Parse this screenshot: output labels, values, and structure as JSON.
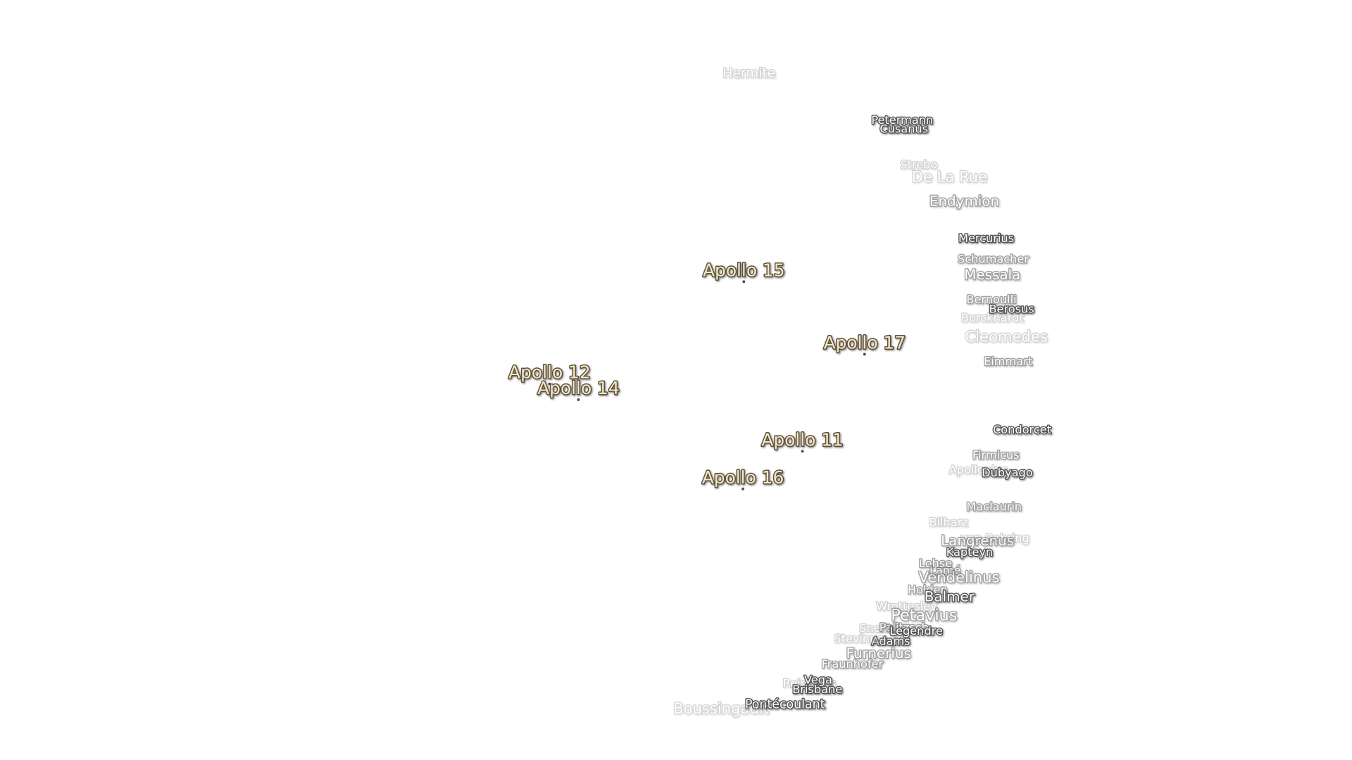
{
  "landing_sites": [
    "Apollo 15",
    "Apollo 17",
    "Apollo 12",
    "Apollo 14",
    "Apollo 11",
    "Apollo 16"
  ],
  "craters": [
    "Hermite",
    "Petermann",
    "Cusanus",
    "Strebo",
    "De La Rue",
    "Endymion",
    "Mercurius",
    "Schumacher",
    "Messala",
    "Bernoulli",
    "Berosus",
    "Burckhardt",
    "Cleomedes",
    "Eimmart",
    "Condorcet",
    "Firmicus",
    "Apollonius",
    "Dubyago",
    "Maclaurin",
    "Bilharz",
    "von Behring",
    "Langrenus",
    "Kapteyn",
    "Lohse",
    "Lamé",
    "Vendelinus",
    "Holden",
    "Balmer",
    "Wrottesley",
    "Petavius",
    "Snellius",
    "Palitzsch",
    "Legendre",
    "Adams",
    "Stevinus",
    "Furnerius",
    "Fraunhofer",
    "Reimarus",
    "Vega",
    "Brisbane",
    "Pontécoulant",
    "Boussingault"
  ]
}
